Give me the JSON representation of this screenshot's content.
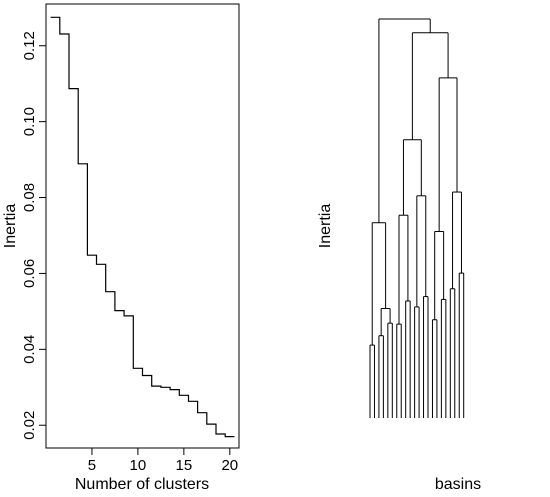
{
  "chart_data": [
    {
      "type": "line",
      "step": true,
      "xlabel": "Number of clusters",
      "ylabel": "Inertia",
      "xlim": [
        0,
        21
      ],
      "ylim": [
        0.014,
        0.131
      ],
      "xticks": [
        5,
        10,
        15,
        20
      ],
      "xtick_labels": [
        "5",
        "10",
        "15",
        "20"
      ],
      "yticks": [
        0.02,
        0.04,
        0.06,
        0.08,
        0.1,
        0.12
      ],
      "ytick_labels": [
        "0.02",
        "0.04",
        "0.06",
        "0.08",
        "0.10",
        "0.12"
      ],
      "x": [
        1,
        2,
        3,
        4,
        5,
        6,
        7,
        8,
        9,
        10,
        11,
        12,
        13,
        14,
        15,
        16,
        17,
        18,
        19,
        20
      ],
      "values": [
        0.1275,
        0.1231,
        0.1087,
        0.0889,
        0.0648,
        0.0624,
        0.0552,
        0.0502,
        0.0488,
        0.035,
        0.0331,
        0.0303,
        0.03,
        0.0294,
        0.0279,
        0.0263,
        0.0233,
        0.0203,
        0.0177,
        0.017
      ],
      "grid": false
    },
    {
      "type": "dendrogram",
      "xlabel": "basins",
      "ylabel": "Inertia",
      "leaves": 40,
      "root": {
        "h": 0.1275,
        "c": [
          {
            "h": 0.0624,
            "c": [
              {
                "h": 0.0233,
                "c": [
                  {
                    "h": 0.0108,
                    "c": []
                  },
                  {
                    "h": 0.0108,
                    "c": []
                  }
                ]
              },
              {
                "h": 0.035,
                "c": [
                  {
                    "h": 0.0263,
                    "c": [
                      {
                        "h": 0.0108,
                        "c": []
                      },
                      {
                        "h": 0.0168,
                        "c": []
                      }
                    ]
                  },
                  {
                    "h": 0.0303,
                    "c": [
                      {
                        "h": 0.0108,
                        "c": []
                      },
                      {
                        "h": 0.0203,
                        "c": []
                      }
                    ]
                  }
                ]
              }
            ]
          },
          {
            "h": 0.1231,
            "c": [
              {
                "h": 0.0889,
                "c": [
                  {
                    "h": 0.0648,
                    "c": [
                      {
                        "h": 0.03,
                        "c": [
                          {
                            "h": 0.0163,
                            "c": []
                          },
                          {
                            "h": 0.0233,
                            "c": []
                          }
                        ]
                      },
                      {
                        "h": 0.0374,
                        "c": [
                          {
                            "h": 0.0168,
                            "c": []
                          },
                          {
                            "h": 0.0233,
                            "c": []
                          }
                        ]
                      }
                    ]
                  },
                  {
                    "h": 0.071,
                    "c": [
                      {
                        "h": 0.0355,
                        "c": [
                          {
                            "h": 0.0163,
                            "c": []
                          },
                          {
                            "h": 0.0253,
                            "c": []
                          }
                        ]
                      },
                      {
                        "h": 0.0388,
                        "c": [
                          {
                            "h": 0.0168,
                            "c": []
                          },
                          {
                            "h": 0.0253,
                            "c": []
                          }
                        ]
                      }
                    ]
                  }
                ]
              },
              {
                "h": 0.1087,
                "c": [
                  {
                    "h": 0.0596,
                    "c": [
                      {
                        "h": 0.0314,
                        "c": [
                          {
                            "h": 0.0163,
                            "c": []
                          },
                          {
                            "h": 0.0248,
                            "c": []
                          }
                        ]
                      },
                      {
                        "h": 0.0379,
                        "c": [
                          {
                            "h": 0.0163,
                            "c": []
                          },
                          {
                            "h": 0.0253,
                            "c": []
                          }
                        ]
                      }
                    ]
                  },
                  {
                    "h": 0.0722,
                    "c": [
                      {
                        "h": 0.0413,
                        "c": [
                          {
                            "h": 0.0163,
                            "c": []
                          },
                          {
                            "h": 0.0253,
                            "c": []
                          }
                        ]
                      },
                      {
                        "h": 0.0463,
                        "c": [
                          {
                            "h": 0.0198,
                            "c": []
                          },
                          {
                            "h": 0.0328,
                            "c": []
                          }
                        ]
                      }
                    ]
                  }
                ]
              }
            ]
          }
        ]
      }
    }
  ]
}
